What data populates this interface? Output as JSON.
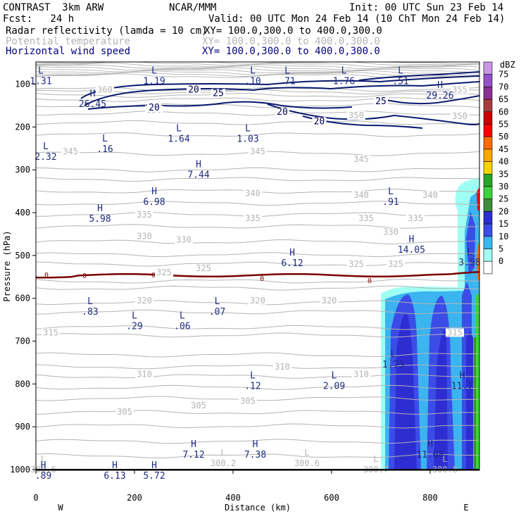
{
  "header": {
    "title": "CONTRAST  3km ARW",
    "org": "NCAR/MMM",
    "init": "Init: 00 UTC Sun 23 Feb 14",
    "fcst": "Fcst:   24 h",
    "valid": "Valid: 00 UTC Mon 24 Feb 14 (10 ChT Mon 24 Feb 14)",
    "field1": "Radar reflectivity (lamda = 10 cm)",
    "xy1": "XY= 100.0,300.0 to 400.0,300.0",
    "field2": "Potential temperature",
    "xy2": "XY= 100.0,300.0 to 400.0,300.0",
    "field3": "Horizontal wind speed",
    "xy3": "XY= 100.0,300.0 to 400.0,300.0"
  },
  "colors": {
    "theta": "#b4b4b4",
    "wind": "#0a1a6e",
    "freezing": "#7a0000",
    "text": "#1e2a80"
  },
  "chart_data": {
    "type": "heatmap",
    "xlabel": "Distance (km)",
    "ylabel": "Pressure (hPa)",
    "xlim": [
      0,
      900
    ],
    "ylim": [
      1050,
      75
    ],
    "x_ticks": [
      0,
      200,
      400,
      600,
      800
    ],
    "y_ticks": [
      100,
      200,
      300,
      400,
      500,
      600,
      700,
      800,
      900,
      1000
    ],
    "ends": {
      "left": "W",
      "right": "E"
    },
    "colorbar": {
      "unit": "dBZ",
      "levels": [
        0,
        5,
        10,
        15,
        20,
        25,
        30,
        35,
        40,
        45,
        50,
        55,
        60,
        65,
        70,
        75
      ],
      "colors": [
        "#ffffff",
        "#9ffff2",
        "#3bb4f0",
        "#3c4ce6",
        "#2d2dd2",
        "#3c8c3c",
        "#3cd23c",
        "#27a527",
        "#fad200",
        "#ffa500",
        "#ff6a0a",
        "#ff0000",
        "#cd0000",
        "#a83c3c",
        "#8c2d96",
        "#9450c8",
        "#c896e6"
      ]
    },
    "theta_labels": [
      {
        "v": "360",
        "x": 140,
        "p": 118
      },
      {
        "v": "355",
        "x": 860,
        "p": 118
      },
      {
        "v": "350",
        "x": 240,
        "p": 165
      },
      {
        "v": "350",
        "x": 650,
        "p": 178
      },
      {
        "v": "350",
        "x": 860,
        "p": 180
      },
      {
        "v": "345",
        "x": 70,
        "p": 262
      },
      {
        "v": "345",
        "x": 450,
        "p": 262
      },
      {
        "v": "345",
        "x": 660,
        "p": 280
      },
      {
        "v": "340",
        "x": 440,
        "p": 360
      },
      {
        "v": "340",
        "x": 660,
        "p": 364
      },
      {
        "v": "340",
        "x": 800,
        "p": 364
      },
      {
        "v": "335",
        "x": 220,
        "p": 410
      },
      {
        "v": "335",
        "x": 440,
        "p": 418
      },
      {
        "v": "335",
        "x": 670,
        "p": 418
      },
      {
        "v": "335",
        "x": 770,
        "p": 418
      },
      {
        "v": "330",
        "x": 220,
        "p": 460
      },
      {
        "v": "330",
        "x": 300,
        "p": 468
      },
      {
        "v": "330",
        "x": 720,
        "p": 450
      },
      {
        "v": "325",
        "x": 260,
        "p": 545
      },
      {
        "v": "325",
        "x": 340,
        "p": 535
      },
      {
        "v": "325",
        "x": 650,
        "p": 525
      },
      {
        "v": "325",
        "x": 730,
        "p": 525
      },
      {
        "v": "320",
        "x": 220,
        "p": 610
      },
      {
        "v": "320",
        "x": 450,
        "p": 610
      },
      {
        "v": "320",
        "x": 595,
        "p": 610
      },
      {
        "v": "315",
        "x": 30,
        "p": 685
      },
      {
        "v": "315",
        "x": 850,
        "p": 685
      },
      {
        "v": "310",
        "x": 220,
        "p": 782
      },
      {
        "v": "310",
        "x": 500,
        "p": 765
      },
      {
        "v": "310",
        "x": 660,
        "p": 782
      },
      {
        "v": "305",
        "x": 180,
        "p": 870
      },
      {
        "v": "305",
        "x": 330,
        "p": 855
      },
      {
        "v": "305",
        "x": 430,
        "p": 845
      }
    ],
    "wind_labels": [
      {
        "v": "20",
        "x": 320,
        "p": 118
      },
      {
        "v": "25",
        "x": 370,
        "p": 126
      },
      {
        "v": "20",
        "x": 240,
        "p": 160
      },
      {
        "v": "20",
        "x": 500,
        "p": 170
      },
      {
        "v": "20",
        "x": 575,
        "p": 192
      },
      {
        "v": "25",
        "x": 700,
        "p": 145
      }
    ],
    "extrema": [
      {
        "t": "L",
        "v": "1.31",
        "x": 10,
        "p": 98
      },
      {
        "t": "L",
        "v": "1.19",
        "x": 240,
        "p": 98
      },
      {
        "t": "L",
        "v": ".10",
        "x": 440,
        "p": 98
      },
      {
        "t": "L",
        "v": ".71",
        "x": 510,
        "p": 98
      },
      {
        "t": "L",
        "v": "1.76",
        "x": 625,
        "p": 98
      },
      {
        "t": "L",
        "v": ".51",
        "x": 740,
        "p": 98
      },
      {
        "t": "H",
        "v": "26.45",
        "x": 115,
        "p": 152
      },
      {
        "t": "H",
        "v": "29.26",
        "x": 820,
        "p": 132
      },
      {
        "t": "L",
        "v": ".16",
        "x": 140,
        "p": 257
      },
      {
        "t": "L",
        "v": "2.32",
        "x": 20,
        "p": 275
      },
      {
        "t": "L",
        "v": "1.64",
        "x": 290,
        "p": 233
      },
      {
        "t": "L",
        "v": "1.03",
        "x": 430,
        "p": 233
      },
      {
        "t": "H",
        "v": "7.44",
        "x": 330,
        "p": 317
      },
      {
        "t": "H",
        "v": "6.98",
        "x": 240,
        "p": 380
      },
      {
        "t": "H",
        "v": "5.98",
        "x": 130,
        "p": 420
      },
      {
        "t": "L",
        "v": ".91",
        "x": 720,
        "p": 380
      },
      {
        "t": "H",
        "v": "14.05",
        "x": 762,
        "p": 492
      },
      {
        "t": "H",
        "v": "6.12",
        "x": 520,
        "p": 523
      },
      {
        "t": "L",
        "v": "3.98",
        "x": 880,
        "p": 522
      },
      {
        "t": "L",
        "v": ".83",
        "x": 110,
        "p": 637
      },
      {
        "t": "L",
        "v": ".07",
        "x": 368,
        "p": 637
      },
      {
        "t": "L",
        "v": ".29",
        "x": 200,
        "p": 670
      },
      {
        "t": "L",
        "v": ".06",
        "x": 297,
        "p": 670
      },
      {
        "t": "L",
        "v": "1.73",
        "x": 725,
        "p": 760
      },
      {
        "t": "L",
        "v": ".12",
        "x": 440,
        "p": 810
      },
      {
        "t": "L",
        "v": "2.09",
        "x": 605,
        "p": 810
      },
      {
        "t": "H",
        "v": "11.7",
        "x": 865,
        "p": 810
      },
      {
        "t": "H",
        "v": "7.12",
        "x": 320,
        "p": 970
      },
      {
        "t": "H",
        "v": "7.38",
        "x": 445,
        "p": 970
      },
      {
        "t": "H",
        "v": "11.68",
        "x": 800,
        "p": 970
      },
      {
        "t": "H",
        "v": ".89",
        "x": 15,
        "p": 1020
      },
      {
        "t": "H",
        "v": "6.13",
        "x": 160,
        "p": 1020
      },
      {
        "t": "H",
        "v": "5.72",
        "x": 240,
        "p": 1020
      }
    ],
    "surface_labels": [
      {
        "t": "L",
        "v": "300.6",
        "x": 15,
        "p": 1005
      },
      {
        "t": "L",
        "v": "300.2",
        "x": 380,
        "p": 990
      },
      {
        "t": "L",
        "v": "300.6",
        "x": 550,
        "p": 990
      },
      {
        "t": "L",
        "v": "300.7",
        "x": 690,
        "p": 1005
      },
      {
        "t": "L",
        "v": "300.8",
        "x": 830,
        "p": 1005
      }
    ]
  }
}
